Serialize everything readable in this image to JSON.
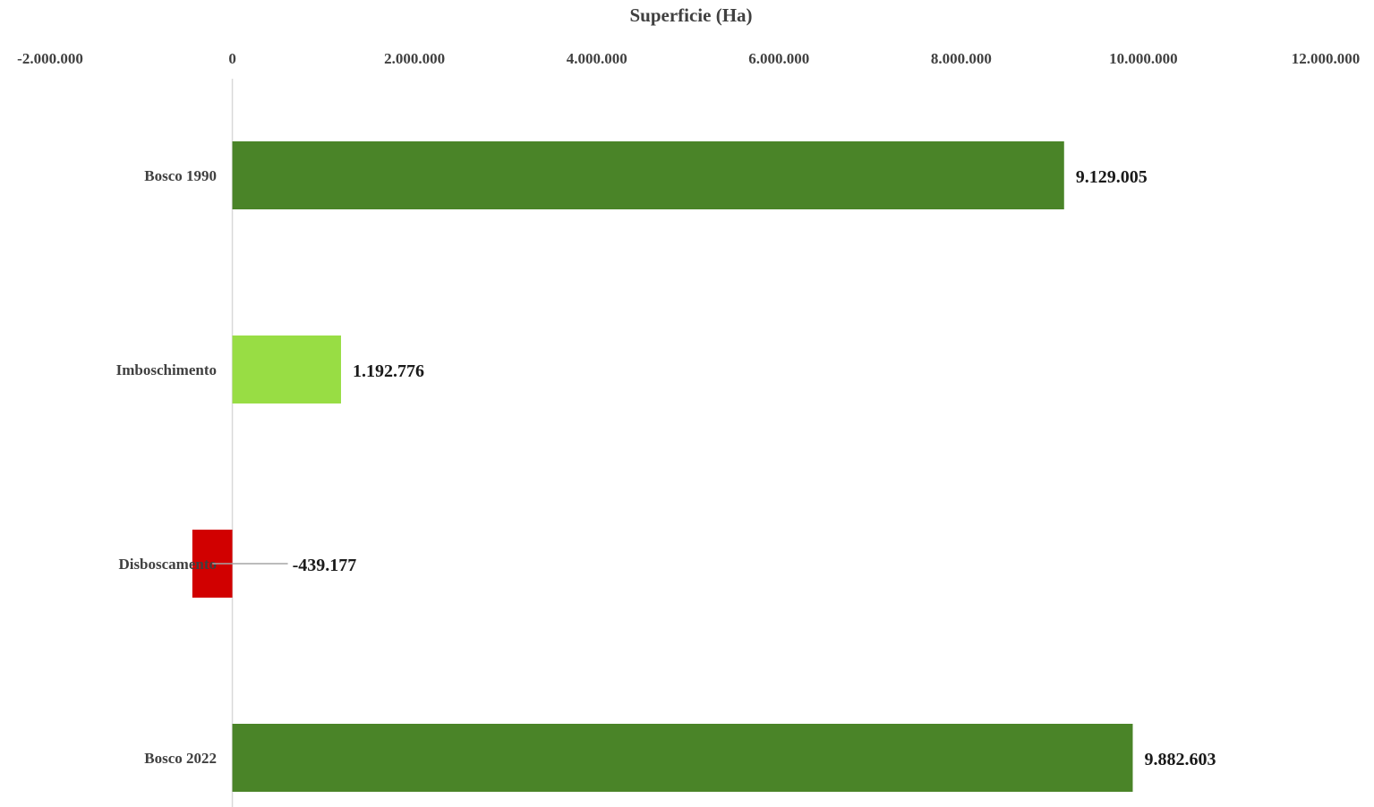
{
  "chart_data": {
    "type": "bar",
    "orientation": "horizontal",
    "xlabel": "Superficie (Ha)",
    "xlim": [
      -2000000,
      12000000
    ],
    "xticks": [
      -2000000,
      0,
      2000000,
      4000000,
      6000000,
      8000000,
      10000000,
      12000000
    ],
    "xtick_labels": [
      "-2.000.000",
      "0",
      "2.000.000",
      "4.000.000",
      "6.000.000",
      "8.000.000",
      "10.000.000",
      "12.000.000"
    ],
    "x_axis_position": "top",
    "grid": false,
    "categories": [
      "Bosco 1990",
      "Imboschimento",
      "Disboscamento",
      "Bosco 2022"
    ],
    "values": [
      9129005,
      1192776,
      -439177,
      9882603
    ],
    "value_labels": [
      "9.129.005",
      "1.192.776",
      "-439.177",
      "9.882.603"
    ],
    "colors": [
      "#4a8428",
      "#98dd44",
      "#d10000",
      "#4a8428"
    ]
  }
}
